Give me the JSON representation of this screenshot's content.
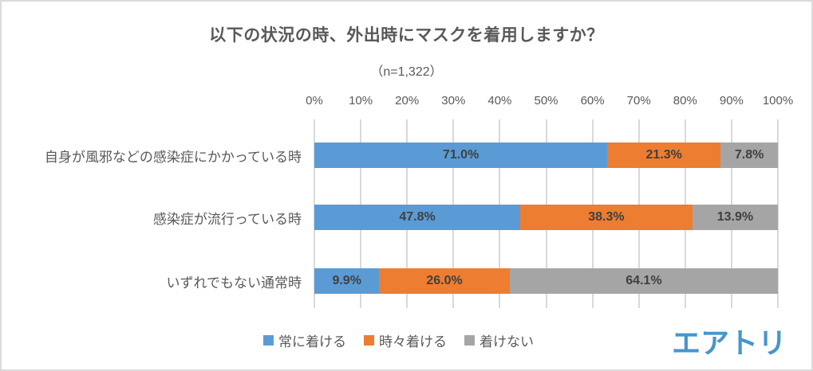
{
  "chart_data": {
    "type": "bar",
    "orientation": "horizontal",
    "stacked": true,
    "title": "以下の状況の時、外出時にマスクを着用しますか？",
    "subtitle": "（n=1,322）",
    "categories": [
      "自身が風邪などの感染症にかかっている時",
      "感染症が流行っている時",
      "いずれでもない通常時"
    ],
    "series": [
      {
        "name": "常に着ける",
        "color": "#5B9BD5",
        "values": [
          71.0,
          47.8,
          9.9
        ]
      },
      {
        "name": "時々着ける",
        "color": "#ED7D31",
        "values": [
          21.3,
          38.3,
          26.0
        ]
      },
      {
        "name": "着けない",
        "color": "#A5A5A5",
        "values": [
          7.8,
          13.9,
          64.1
        ]
      }
    ],
    "x_ticks": [
      "0%",
      "10%",
      "20%",
      "30%",
      "40%",
      "50%",
      "60%",
      "70%",
      "80%",
      "90%",
      "100%"
    ],
    "xlim": [
      0,
      100
    ],
    "grid": "vertical",
    "legend_position": "bottom",
    "value_label_suffix": "%"
  },
  "branding": {
    "logo_text": "エアトリ",
    "logo_color": "#4796C9"
  },
  "colors": {
    "background": "#FFFFFF",
    "border": "#DBDBDB",
    "gridline": "#D9D9D9",
    "axis_text": "#595959",
    "data_label": "#404040"
  }
}
